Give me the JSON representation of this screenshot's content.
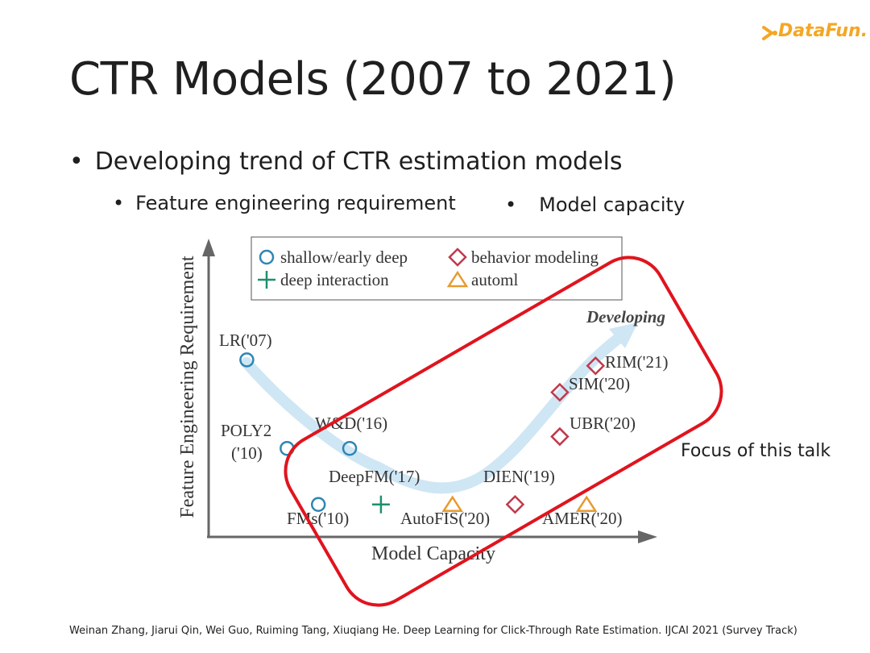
{
  "slide": {
    "title": "CTR Models (2007 to 2021)",
    "bullet": "Developing trend of CTR estimation models",
    "sub_bullets": [
      "Feature engineering requirement",
      "Model capacity"
    ],
    "annotation": "Focus of this talk",
    "citation": "Weinan Zhang, Jiarui Qin, Wei Guo, Ruiming Tang, Xiuqiang He. Deep Learning for Click-Through Rate Estimation. IJCAI 2021 (Survey Track)",
    "logo_text": "DataFun."
  },
  "chart_data": {
    "type": "scatter",
    "xlabel": "Model Capacity",
    "ylabel": "Feature Engineering Requirement",
    "xlim": [
      0,
      10
    ],
    "ylim": [
      0,
      10
    ],
    "trend_label": "Developing",
    "legend": [
      {
        "name": "shallow/early deep",
        "marker": "circle",
        "color": "#2e86b5"
      },
      {
        "name": "behavior modeling",
        "marker": "diamond",
        "color": "#c0394b"
      },
      {
        "name": "deep interaction",
        "marker": "plus",
        "color": "#1e8f6e"
      },
      {
        "name": "automl",
        "marker": "triangle",
        "color": "#e89a2c"
      }
    ],
    "points": [
      {
        "label": "LR('07)",
        "series": "shallow/early deep",
        "x": 0.8,
        "y": 6.0
      },
      {
        "label": "POLY2 ('10)",
        "series": "shallow/early deep",
        "x": 1.7,
        "y": 3.0
      },
      {
        "label": "W&D('16)",
        "series": "shallow/early deep",
        "x": 3.1,
        "y": 3.0
      },
      {
        "label": "FMs('10)",
        "series": "shallow/early deep",
        "x": 2.4,
        "y": 1.1
      },
      {
        "label": "DeepFM('17)",
        "series": "deep interaction",
        "x": 3.8,
        "y": 1.1
      },
      {
        "label": "AutoFIS('20)",
        "series": "automl",
        "x": 5.4,
        "y": 1.1
      },
      {
        "label": "DIEN('19)",
        "series": "behavior modeling",
        "x": 6.8,
        "y": 1.1
      },
      {
        "label": "AMER('20)",
        "series": "automl",
        "x": 8.4,
        "y": 1.1
      },
      {
        "label": "UBR('20)",
        "series": "behavior modeling",
        "x": 7.8,
        "y": 3.4
      },
      {
        "label": "SIM('20)",
        "series": "behavior modeling",
        "x": 7.8,
        "y": 4.9
      },
      {
        "label": "RIM('21)",
        "series": "behavior modeling",
        "x": 8.6,
        "y": 5.8
      }
    ]
  }
}
